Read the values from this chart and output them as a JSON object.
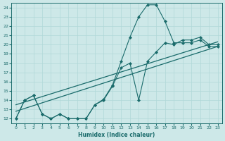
{
  "xlabel": "Humidex (Indice chaleur)",
  "xlim": [
    -0.5,
    23.5
  ],
  "ylim": [
    11.5,
    24.5
  ],
  "xticks": [
    0,
    1,
    2,
    3,
    4,
    5,
    6,
    7,
    8,
    9,
    10,
    11,
    12,
    13,
    14,
    15,
    16,
    17,
    18,
    19,
    20,
    21,
    22,
    23
  ],
  "yticks": [
    12,
    13,
    14,
    15,
    16,
    17,
    18,
    19,
    20,
    21,
    22,
    23,
    24
  ],
  "bg_color": "#cde8e8",
  "grid_color": "#b0d8d8",
  "line_color": "#1a6b6b",
  "line1_x": [
    0,
    1,
    2,
    3,
    4,
    5,
    6,
    7,
    8,
    9,
    10,
    11,
    12,
    13,
    14,
    15,
    16,
    17,
    18,
    19,
    20,
    21,
    22,
    23
  ],
  "line1_y": [
    12,
    14,
    14.5,
    12.5,
    12,
    12.5,
    12,
    12,
    12,
    13.5,
    14,
    15.5,
    17.5,
    18,
    14,
    18.2,
    19.2,
    20.2,
    20,
    20.5,
    20.5,
    20.8,
    20,
    20
  ],
  "line2_x": [
    0,
    1,
    2,
    3,
    4,
    5,
    6,
    7,
    8,
    9,
    10,
    11,
    12,
    13,
    14,
    15,
    16,
    17,
    18,
    19,
    20,
    21,
    22,
    23
  ],
  "line2_y": [
    12,
    14,
    14.5,
    12.5,
    12,
    12.5,
    12,
    12,
    12,
    13.5,
    14.1,
    15.6,
    18.2,
    20.8,
    23.0,
    24.3,
    24.3,
    22.5,
    20.2,
    20.2,
    20.2,
    20.5,
    19.8,
    19.8
  ],
  "line3_x": [
    0,
    23
  ],
  "line3_y": [
    12.8,
    19.8
  ],
  "line4_x": [
    0,
    23
  ],
  "line4_y": [
    13.5,
    20.2
  ]
}
